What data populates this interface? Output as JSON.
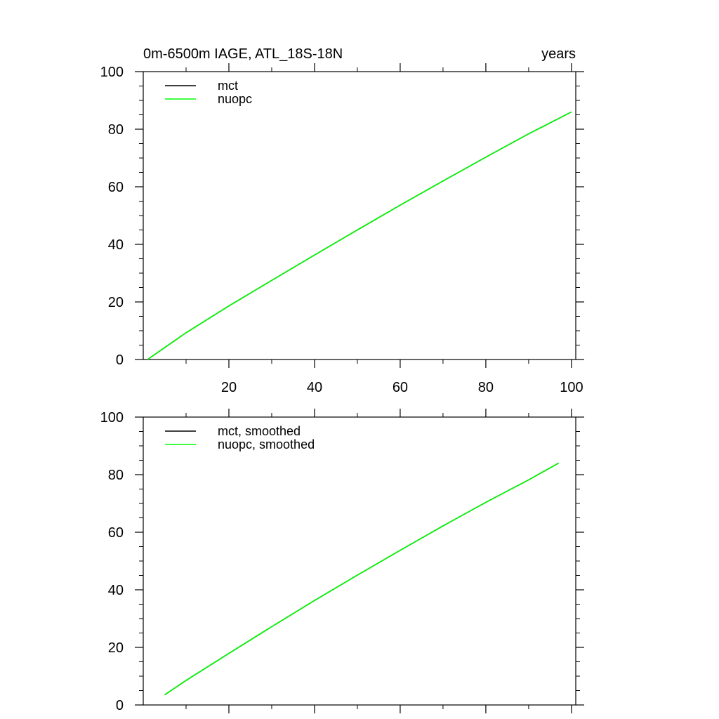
{
  "header": {
    "title": "0m-6500m IAGE, ATL_18S-18N",
    "units": "years"
  },
  "colors": {
    "mct": "#000000",
    "nuopc": "#00ff00",
    "axis": "#000000"
  },
  "chart_data": [
    {
      "type": "line",
      "title": "0m-6500m IAGE, ATL_18S-18N",
      "ylabel": "",
      "xlabel": "",
      "xlim": [
        0,
        101
      ],
      "ylim": [
        0,
        100
      ],
      "xticks": [
        20,
        40,
        60,
        80,
        100
      ],
      "xtick_labels": [
        "20",
        "40",
        "60",
        "80",
        "100"
      ],
      "yticks": [
        0,
        20,
        40,
        60,
        80,
        100
      ],
      "ytick_labels": [
        "0",
        "20",
        "40",
        "60",
        "80",
        "100"
      ],
      "legend": "top-left",
      "grid": false,
      "series": [
        {
          "name": "mct",
          "color": "#000000",
          "x": [
            1,
            10,
            20,
            30,
            40,
            50,
            60,
            70,
            80,
            90,
            100
          ],
          "y": [
            0,
            9.3,
            18.6,
            27.5,
            36.3,
            45.0,
            53.6,
            62.0,
            70.3,
            78.4,
            86.0
          ]
        },
        {
          "name": "nuopc",
          "color": "#00ff00",
          "x": [
            1,
            10,
            20,
            30,
            40,
            50,
            60,
            70,
            80,
            90,
            100
          ],
          "y": [
            0,
            9.3,
            18.6,
            27.5,
            36.3,
            45.0,
            53.6,
            62.0,
            70.3,
            78.4,
            86.0
          ]
        }
      ]
    },
    {
      "type": "line",
      "xlabel": "",
      "ylabel": "",
      "xlim": [
        0,
        101
      ],
      "ylim": [
        0,
        100
      ],
      "xticks": [
        20,
        40,
        60,
        80,
        100
      ],
      "yticks": [
        0,
        20,
        40,
        60,
        80,
        100
      ],
      "ytick_labels": [
        "0",
        "20",
        "40",
        "60",
        "80",
        "100"
      ],
      "legend": "top-left",
      "grid": false,
      "series": [
        {
          "name": "mct, smoothed",
          "color": "#000000",
          "x": [
            5,
            10,
            20,
            30,
            40,
            50,
            60,
            70,
            80,
            90,
            97
          ],
          "y": [
            3.5,
            8.5,
            17.9,
            27.2,
            36.3,
            45.1,
            53.7,
            62.2,
            70.4,
            78.2,
            84.0
          ]
        },
        {
          "name": "nuopc, smoothed",
          "color": "#00ff00",
          "x": [
            5,
            10,
            20,
            30,
            40,
            50,
            60,
            70,
            80,
            90,
            97
          ],
          "y": [
            3.5,
            8.5,
            17.9,
            27.2,
            36.3,
            45.1,
            53.7,
            62.2,
            70.4,
            78.2,
            84.0
          ]
        }
      ]
    }
  ]
}
